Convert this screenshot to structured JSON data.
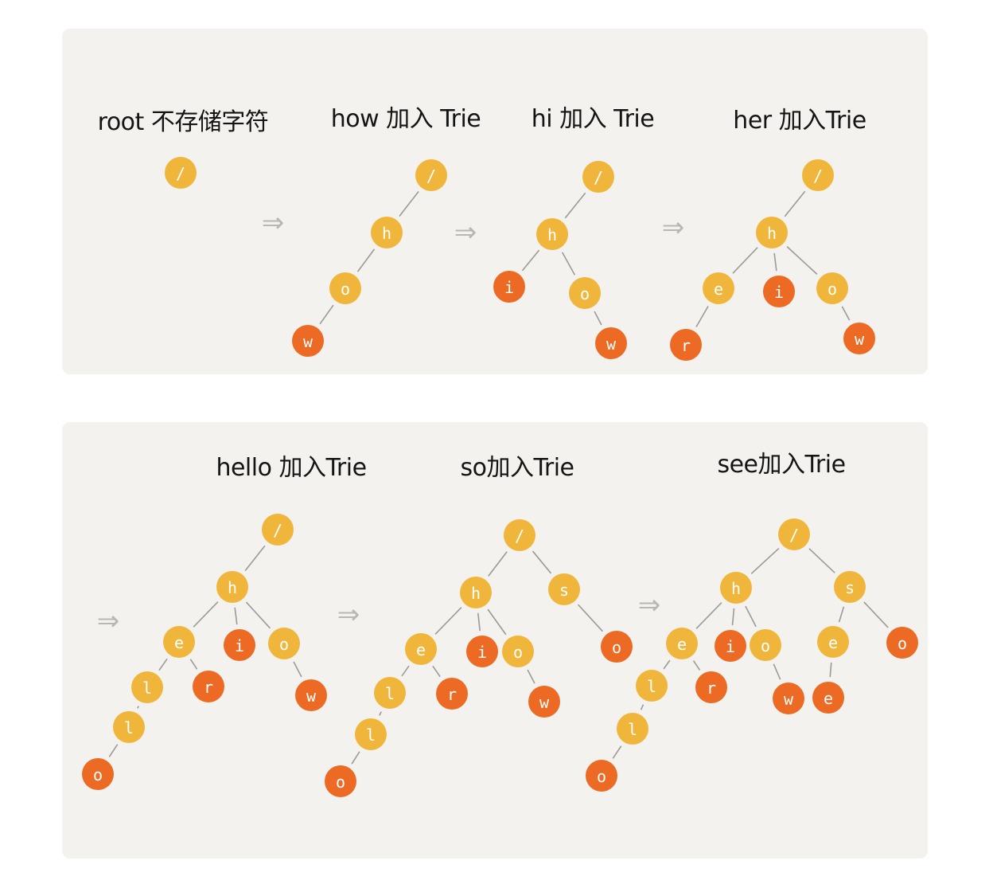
{
  "colors": {
    "panel_bg": "#f3f2ee",
    "node_inner": "#f0b63c",
    "node_end": "#ec6a24",
    "edge": "#9a9a9a",
    "arrow": "#b9b7b1"
  },
  "top_row": {
    "steps": [
      {
        "title": "root 不存储字符",
        "tree": {
          "label": "/",
          "end": false
        }
      },
      {
        "title": "how 加入 Trie",
        "tree": {
          "label": "/",
          "end": false,
          "children": [
            {
              "label": "h",
              "end": false,
              "children": [
                {
                  "label": "o",
                  "end": false,
                  "children": [
                    {
                      "label": "w",
                      "end": true
                    }
                  ]
                }
              ]
            }
          ]
        }
      },
      {
        "title": "hi 加入 Trie",
        "tree": {
          "label": "/",
          "end": false,
          "children": [
            {
              "label": "h",
              "end": false,
              "children": [
                {
                  "label": "i",
                  "end": true
                },
                {
                  "label": "o",
                  "end": false,
                  "children": [
                    {
                      "label": "w",
                      "end": true
                    }
                  ]
                }
              ]
            }
          ]
        }
      },
      {
        "title": "her 加入Trie",
        "tree": {
          "label": "/",
          "end": false,
          "children": [
            {
              "label": "h",
              "end": false,
              "children": [
                {
                  "label": "e",
                  "end": false,
                  "children": [
                    {
                      "label": "r",
                      "end": true
                    }
                  ]
                },
                {
                  "label": "i",
                  "end": true
                },
                {
                  "label": "o",
                  "end": false,
                  "children": [
                    {
                      "label": "w",
                      "end": true
                    }
                  ]
                }
              ]
            }
          ]
        }
      }
    ],
    "arrows": [
      "⇒",
      "⇒",
      "⇒"
    ]
  },
  "bottom_row": {
    "steps": [
      {
        "title": "hello 加入Trie",
        "tree": {
          "label": "/",
          "end": false,
          "children": [
            {
              "label": "h",
              "end": false,
              "children": [
                {
                  "label": "e",
                  "end": false,
                  "children": [
                    {
                      "label": "l",
                      "end": false,
                      "children": [
                        {
                          "label": "l",
                          "end": false,
                          "children": [
                            {
                              "label": "o",
                              "end": true
                            }
                          ]
                        }
                      ]
                    },
                    {
                      "label": "r",
                      "end": true
                    }
                  ]
                },
                {
                  "label": "i",
                  "end": true
                },
                {
                  "label": "o",
                  "end": false,
                  "children": [
                    {
                      "label": "w",
                      "end": true
                    }
                  ]
                }
              ]
            }
          ]
        }
      },
      {
        "title": "so加入Trie",
        "tree": {
          "label": "/",
          "end": false,
          "children": [
            {
              "label": "h",
              "end": false,
              "children": [
                {
                  "label": "e",
                  "end": false,
                  "children": [
                    {
                      "label": "l",
                      "end": false,
                      "children": [
                        {
                          "label": "l",
                          "end": false,
                          "children": [
                            {
                              "label": "o",
                              "end": true
                            }
                          ]
                        }
                      ]
                    },
                    {
                      "label": "r",
                      "end": true
                    }
                  ]
                },
                {
                  "label": "i",
                  "end": true
                },
                {
                  "label": "o",
                  "end": false,
                  "children": [
                    {
                      "label": "w",
                      "end": true
                    }
                  ]
                }
              ]
            },
            {
              "label": "s",
              "end": false,
              "children": [
                {
                  "label": "o",
                  "end": true
                }
              ]
            }
          ]
        }
      },
      {
        "title": "see加入Trie",
        "tree": {
          "label": "/",
          "end": false,
          "children": [
            {
              "label": "h",
              "end": false,
              "children": [
                {
                  "label": "e",
                  "end": false,
                  "children": [
                    {
                      "label": "l",
                      "end": false,
                      "children": [
                        {
                          "label": "l",
                          "end": false,
                          "children": [
                            {
                              "label": "o",
                              "end": true
                            }
                          ]
                        }
                      ]
                    },
                    {
                      "label": "r",
                      "end": true
                    }
                  ]
                },
                {
                  "label": "i",
                  "end": true
                },
                {
                  "label": "o",
                  "end": false,
                  "children": [
                    {
                      "label": "w",
                      "end": true
                    }
                  ]
                }
              ]
            },
            {
              "label": "s",
              "end": false,
              "children": [
                {
                  "label": "e",
                  "end": false,
                  "children": [
                    {
                      "label": "e",
                      "end": true
                    }
                  ]
                },
                {
                  "label": "o",
                  "end": true
                }
              ]
            }
          ]
        }
      }
    ],
    "arrows": [
      "⇒",
      "⇒",
      "⇒"
    ]
  }
}
